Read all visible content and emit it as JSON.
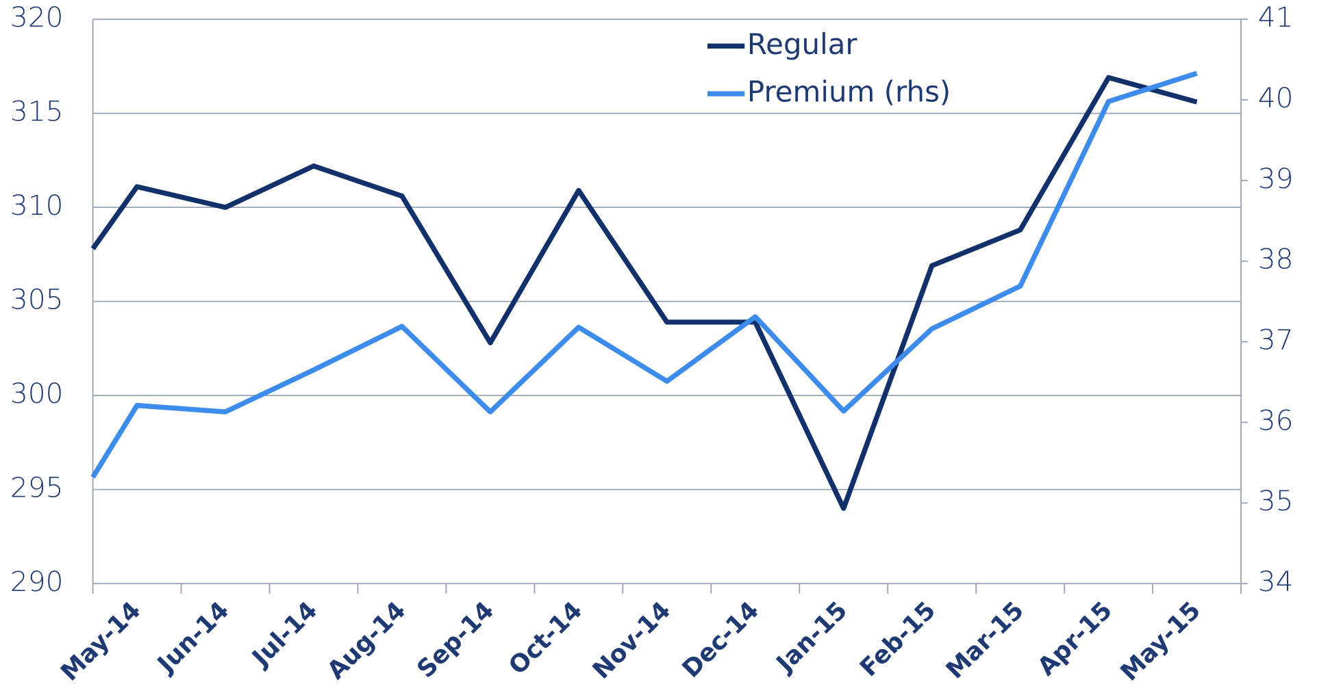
{
  "chart_data": {
    "type": "line",
    "categories": [
      null,
      "May-14",
      "Jun-14",
      "Jul-14",
      "Aug-14",
      "Sep-14",
      "Oct-14",
      "Nov-14",
      "Dec-14",
      "Jan-15",
      "Feb-15",
      "Mar-15",
      "Apr-15",
      "May-15"
    ],
    "series": [
      {
        "name": "Regular",
        "color": "#12316b",
        "values": [
          307.8,
          311.1,
          310.0,
          312.2,
          310.6,
          302.8,
          310.9,
          303.9,
          303.9,
          294.0,
          306.9,
          308.8,
          316.9,
          315.6
        ]
      },
      {
        "name": "Premium (rhs)",
        "color": "#3d8bea",
        "axis": "y2",
        "values": [
          35.32,
          36.21,
          36.13,
          36.65,
          37.19,
          36.13,
          37.18,
          36.51,
          37.31,
          36.14,
          37.16,
          37.69,
          39.98,
          40.33
        ]
      }
    ],
    "ylim": [
      290,
      320
    ],
    "yticks": [
      290,
      295,
      300,
      305,
      310,
      315,
      320
    ],
    "y2lim": [
      34,
      41
    ],
    "y2ticks": [
      34,
      35,
      36,
      37,
      38,
      39,
      40,
      41
    ],
    "grid": true,
    "legend": "top"
  }
}
